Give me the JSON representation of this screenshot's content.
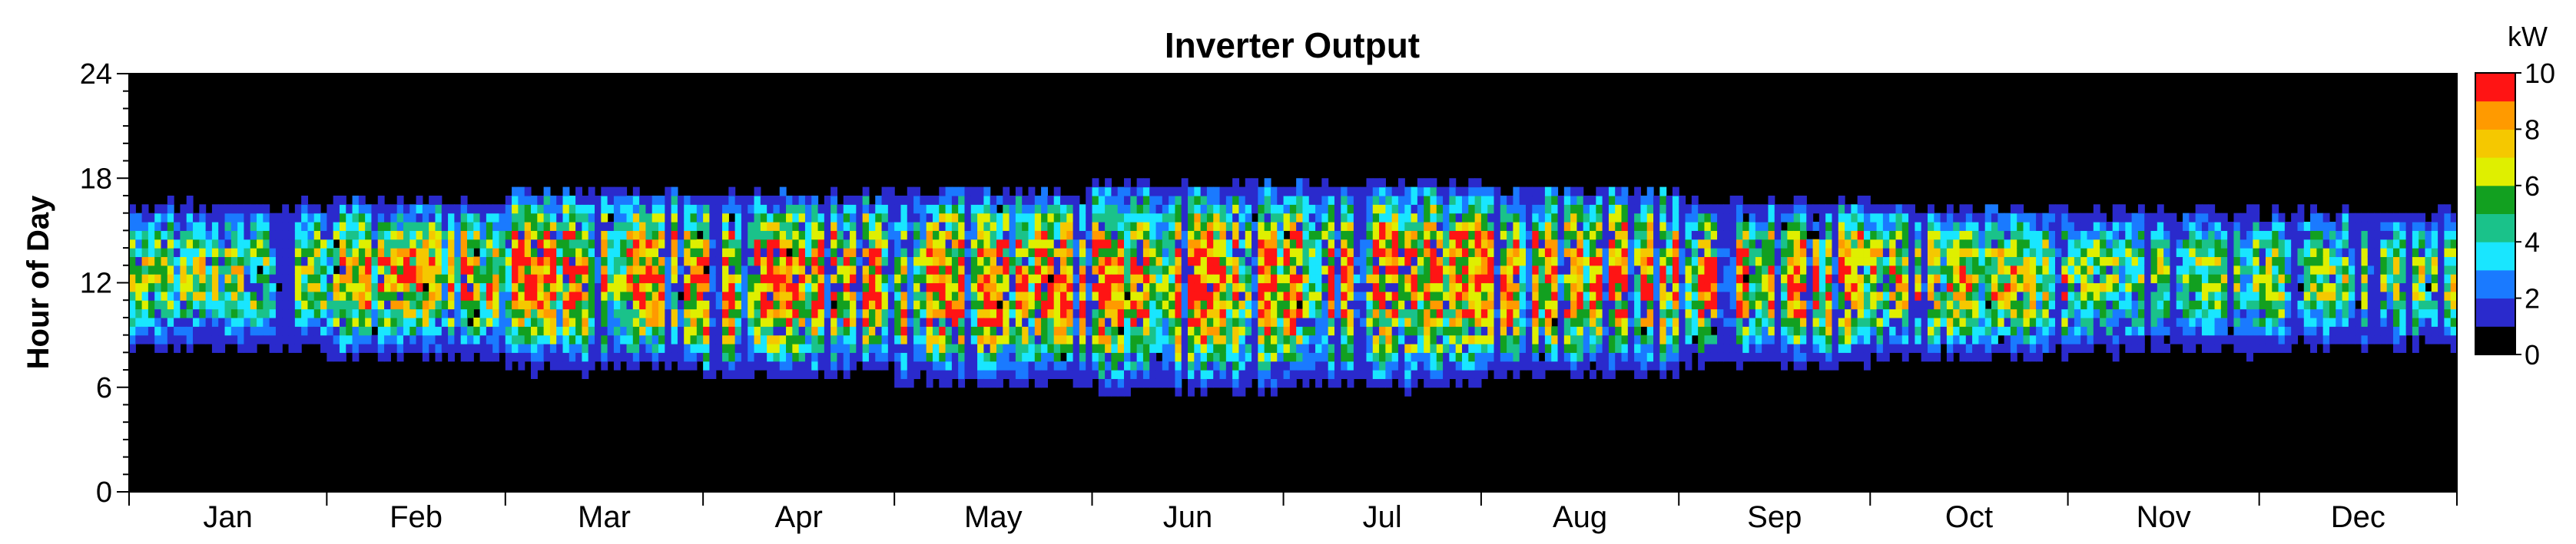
{
  "chart_data": {
    "type": "heatmap",
    "title": "Inverter Output",
    "ylabel": "Hour of Day",
    "xlabel": "",
    "ylim": [
      0,
      24
    ],
    "y_ticks": [
      "0",
      "6",
      "12",
      "18",
      "24"
    ],
    "x_categories": [
      "Jan",
      "Feb",
      "Mar",
      "Apr",
      "May",
      "Jun",
      "Jul",
      "Aug",
      "Sep",
      "Oct",
      "Nov",
      "Dec"
    ],
    "days_per_month": [
      31,
      28,
      31,
      30,
      31,
      30,
      31,
      31,
      30,
      31,
      30,
      31
    ],
    "colorbar": {
      "unit": "kW",
      "range": [
        0,
        10
      ],
      "tick_labels": [
        "0",
        "2",
        "4",
        "6",
        "8",
        "10"
      ],
      "colors": [
        "#000000",
        "#2a2acc",
        "#1a7aff",
        "#19e6ff",
        "#1ac28a",
        "#12a020",
        "#dfef00",
        "#f5c800",
        "#ff9a00",
        "#ff1414"
      ]
    },
    "daylight_by_month": [
      {
        "month": "Jan",
        "start_hour": 8.3,
        "end_hour": 16.2,
        "typical_peak_kW": 6.5
      },
      {
        "month": "Feb",
        "start_hour": 7.8,
        "end_hour": 16.5,
        "typical_peak_kW": 8
      },
      {
        "month": "Mar",
        "start_hour": 7.2,
        "end_hour": 16.9,
        "typical_peak_kW": 9
      },
      {
        "month": "Apr",
        "start_hour": 6.9,
        "end_hour": 16.8,
        "typical_peak_kW": 9.5
      },
      {
        "month": "May",
        "start_hour": 6.4,
        "end_hour": 17.1,
        "typical_peak_kW": 9.2
      },
      {
        "month": "Jun",
        "start_hour": 6.1,
        "end_hour": 17.4,
        "typical_peak_kW": 9.6
      },
      {
        "month": "Jul",
        "start_hour": 6.3,
        "end_hour": 17.4,
        "typical_peak_kW": 9.4
      },
      {
        "month": "Aug",
        "start_hour": 6.9,
        "end_hour": 17.1,
        "typical_peak_kW": 9.6
      },
      {
        "month": "Sep",
        "start_hour": 7.4,
        "end_hour": 16.4,
        "typical_peak_kW": 9.3
      },
      {
        "month": "Oct",
        "start_hour": 7.8,
        "end_hour": 16.1,
        "typical_peak_kW": 7.5
      },
      {
        "month": "Nov",
        "start_hour": 8.2,
        "end_hour": 15.8,
        "typical_peak_kW": 6
      },
      {
        "month": "Dec",
        "start_hour": 8.4,
        "end_hour": 15.8,
        "typical_peak_kW": 6.5
      }
    ]
  }
}
